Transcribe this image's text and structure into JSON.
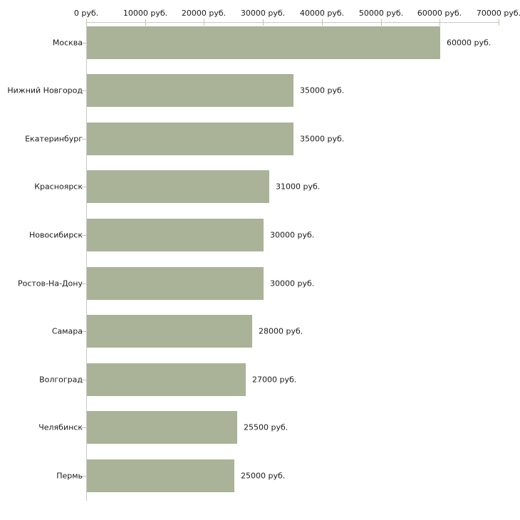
{
  "chart_data": {
    "type": "bar",
    "orientation": "horizontal",
    "title": "",
    "xlabel": "",
    "ylabel": "",
    "categories": [
      "Москва",
      "Нижний Новгород",
      "Екатеринбург",
      "Красноярск",
      "Новосибирск",
      "Ростов-На-Дону",
      "Самара",
      "Волгоград",
      "Челябинск",
      "Пермь"
    ],
    "values": [
      60000,
      35000,
      35000,
      31000,
      30000,
      30000,
      28000,
      27000,
      25500,
      25000
    ],
    "value_labels": [
      "60000 руб.",
      "35000 руб.",
      "35000 руб.",
      "31000 руб.",
      "30000 руб.",
      "30000 руб.",
      "28000 руб.",
      "27000 руб.",
      "25500 руб.",
      "25000 руб."
    ],
    "x_axis": {
      "min": 0,
      "max": 70000,
      "ticks": [
        0,
        10000,
        20000,
        30000,
        40000,
        50000,
        60000,
        70000
      ],
      "tick_labels": [
        "0 руб.",
        "10000 руб.",
        "20000 руб.",
        "30000 руб.",
        "40000 руб.",
        "50000 руб.",
        "60000 руб.",
        "70000 руб."
      ]
    },
    "legend": null,
    "grid": false,
    "colors": {
      "bar": "#aab298",
      "axis_line": "#c9c9c9",
      "tick_mark": "#c6c3a2",
      "text": "#1a1a1a",
      "background": "#ffffff"
    }
  }
}
